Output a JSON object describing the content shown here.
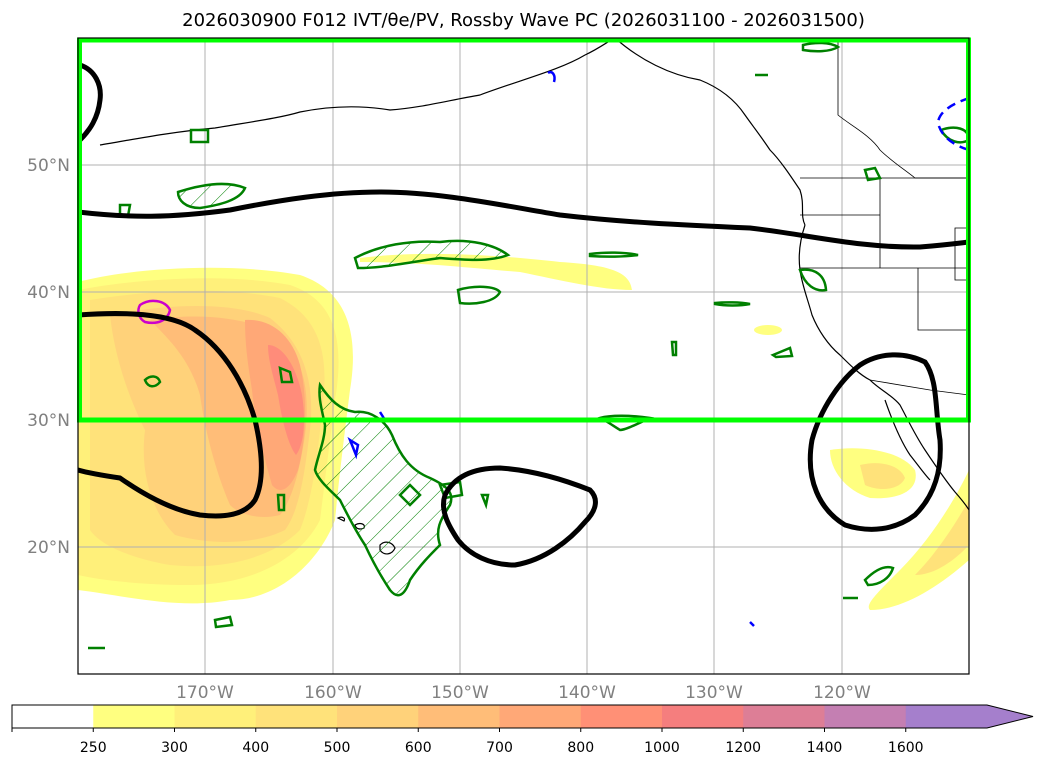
{
  "title": "2026030900 F012 IVT/θe/PV, Rossby Wave PC (2026031100 - 2026031500)",
  "map": {
    "lon_range": [
      -180,
      -110
    ],
    "lat_range": [
      10,
      60
    ],
    "lat_labels": [
      "50°N",
      "40°N",
      "30°N",
      "20°N"
    ],
    "lon_labels": [
      "170°W",
      "160°W",
      "150°W",
      "140°W",
      "130°W",
      "120°W"
    ],
    "highlight_box": {
      "color": "#00ff00",
      "lat_south": 30,
      "lat_north": 60,
      "lon_west": -180,
      "lon_east": -110
    }
  },
  "colorbar": {
    "ticks": [
      "250",
      "300",
      "400",
      "500",
      "600",
      "700",
      "800",
      "1000",
      "1200",
      "1400",
      "1600"
    ],
    "colors": [
      "#ffffff",
      "#ffff80",
      "#fff07a",
      "#ffe27a",
      "#ffd27a",
      "#ffbd78",
      "#ffa877",
      "#ff9076",
      "#f57e7e",
      "#dd7e96",
      "#c47fb2",
      "#a57fcc"
    ],
    "extend": "max"
  },
  "colors": {
    "ivt_low": "#ffff80",
    "ivt_mid": "#ffd27a",
    "ivt_high": "#ff8c7a",
    "contour_black": "#000000",
    "contour_green": "#008000",
    "contour_blue": "#0000ff",
    "contour_magenta": "#cc00cc",
    "gridline": "#b0b0b0"
  }
}
